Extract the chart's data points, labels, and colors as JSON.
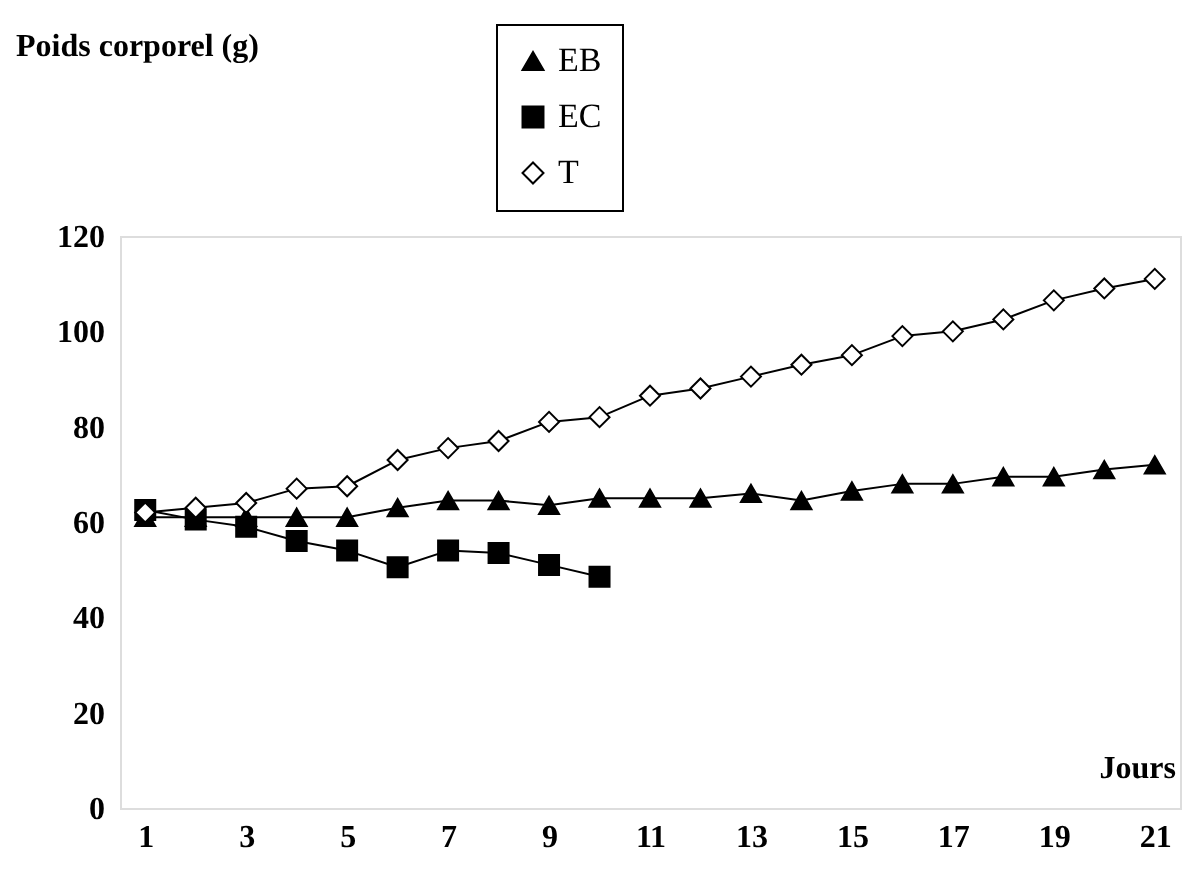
{
  "chart_data": {
    "type": "line",
    "ylabel": "Poids corporel (g)",
    "xlabel": "Jours",
    "x": [
      1,
      2,
      3,
      4,
      5,
      6,
      7,
      8,
      9,
      10,
      11,
      12,
      13,
      14,
      15,
      16,
      17,
      18,
      19,
      20,
      21
    ],
    "xlim": [
      0.5,
      21.5
    ],
    "xticks": [
      1,
      3,
      5,
      7,
      9,
      11,
      13,
      15,
      17,
      19,
      21
    ],
    "ylim": [
      0,
      120
    ],
    "yticks": [
      0,
      20,
      40,
      60,
      80,
      100,
      120
    ],
    "grid": false,
    "legend": "top",
    "line_style": "solid",
    "series": [
      {
        "name": "EB",
        "color": "#000000",
        "marker": "triangle",
        "values": [
          61,
          61,
          61,
          61,
          61,
          63,
          64.5,
          64.5,
          63.5,
          65,
          65,
          65,
          66,
          64.5,
          66.5,
          68,
          68,
          69.5,
          69.5,
          71,
          72
        ]
      },
      {
        "name": "EC",
        "color": "#000000",
        "marker": "square",
        "values": [
          62.5,
          60.5,
          59,
          56,
          54,
          50.5,
          54,
          53.5,
          51,
          48.5,
          null,
          null,
          null,
          null,
          null,
          null,
          null,
          null,
          null,
          null,
          null
        ]
      },
      {
        "name": "T",
        "color": "#000000",
        "marker": "diamond",
        "values": [
          62,
          63,
          64,
          67,
          67.5,
          73,
          75.5,
          77,
          81,
          82,
          86.5,
          88,
          90.5,
          93,
          95,
          99,
          100,
          102.5,
          106.5,
          109,
          111
        ]
      }
    ]
  }
}
